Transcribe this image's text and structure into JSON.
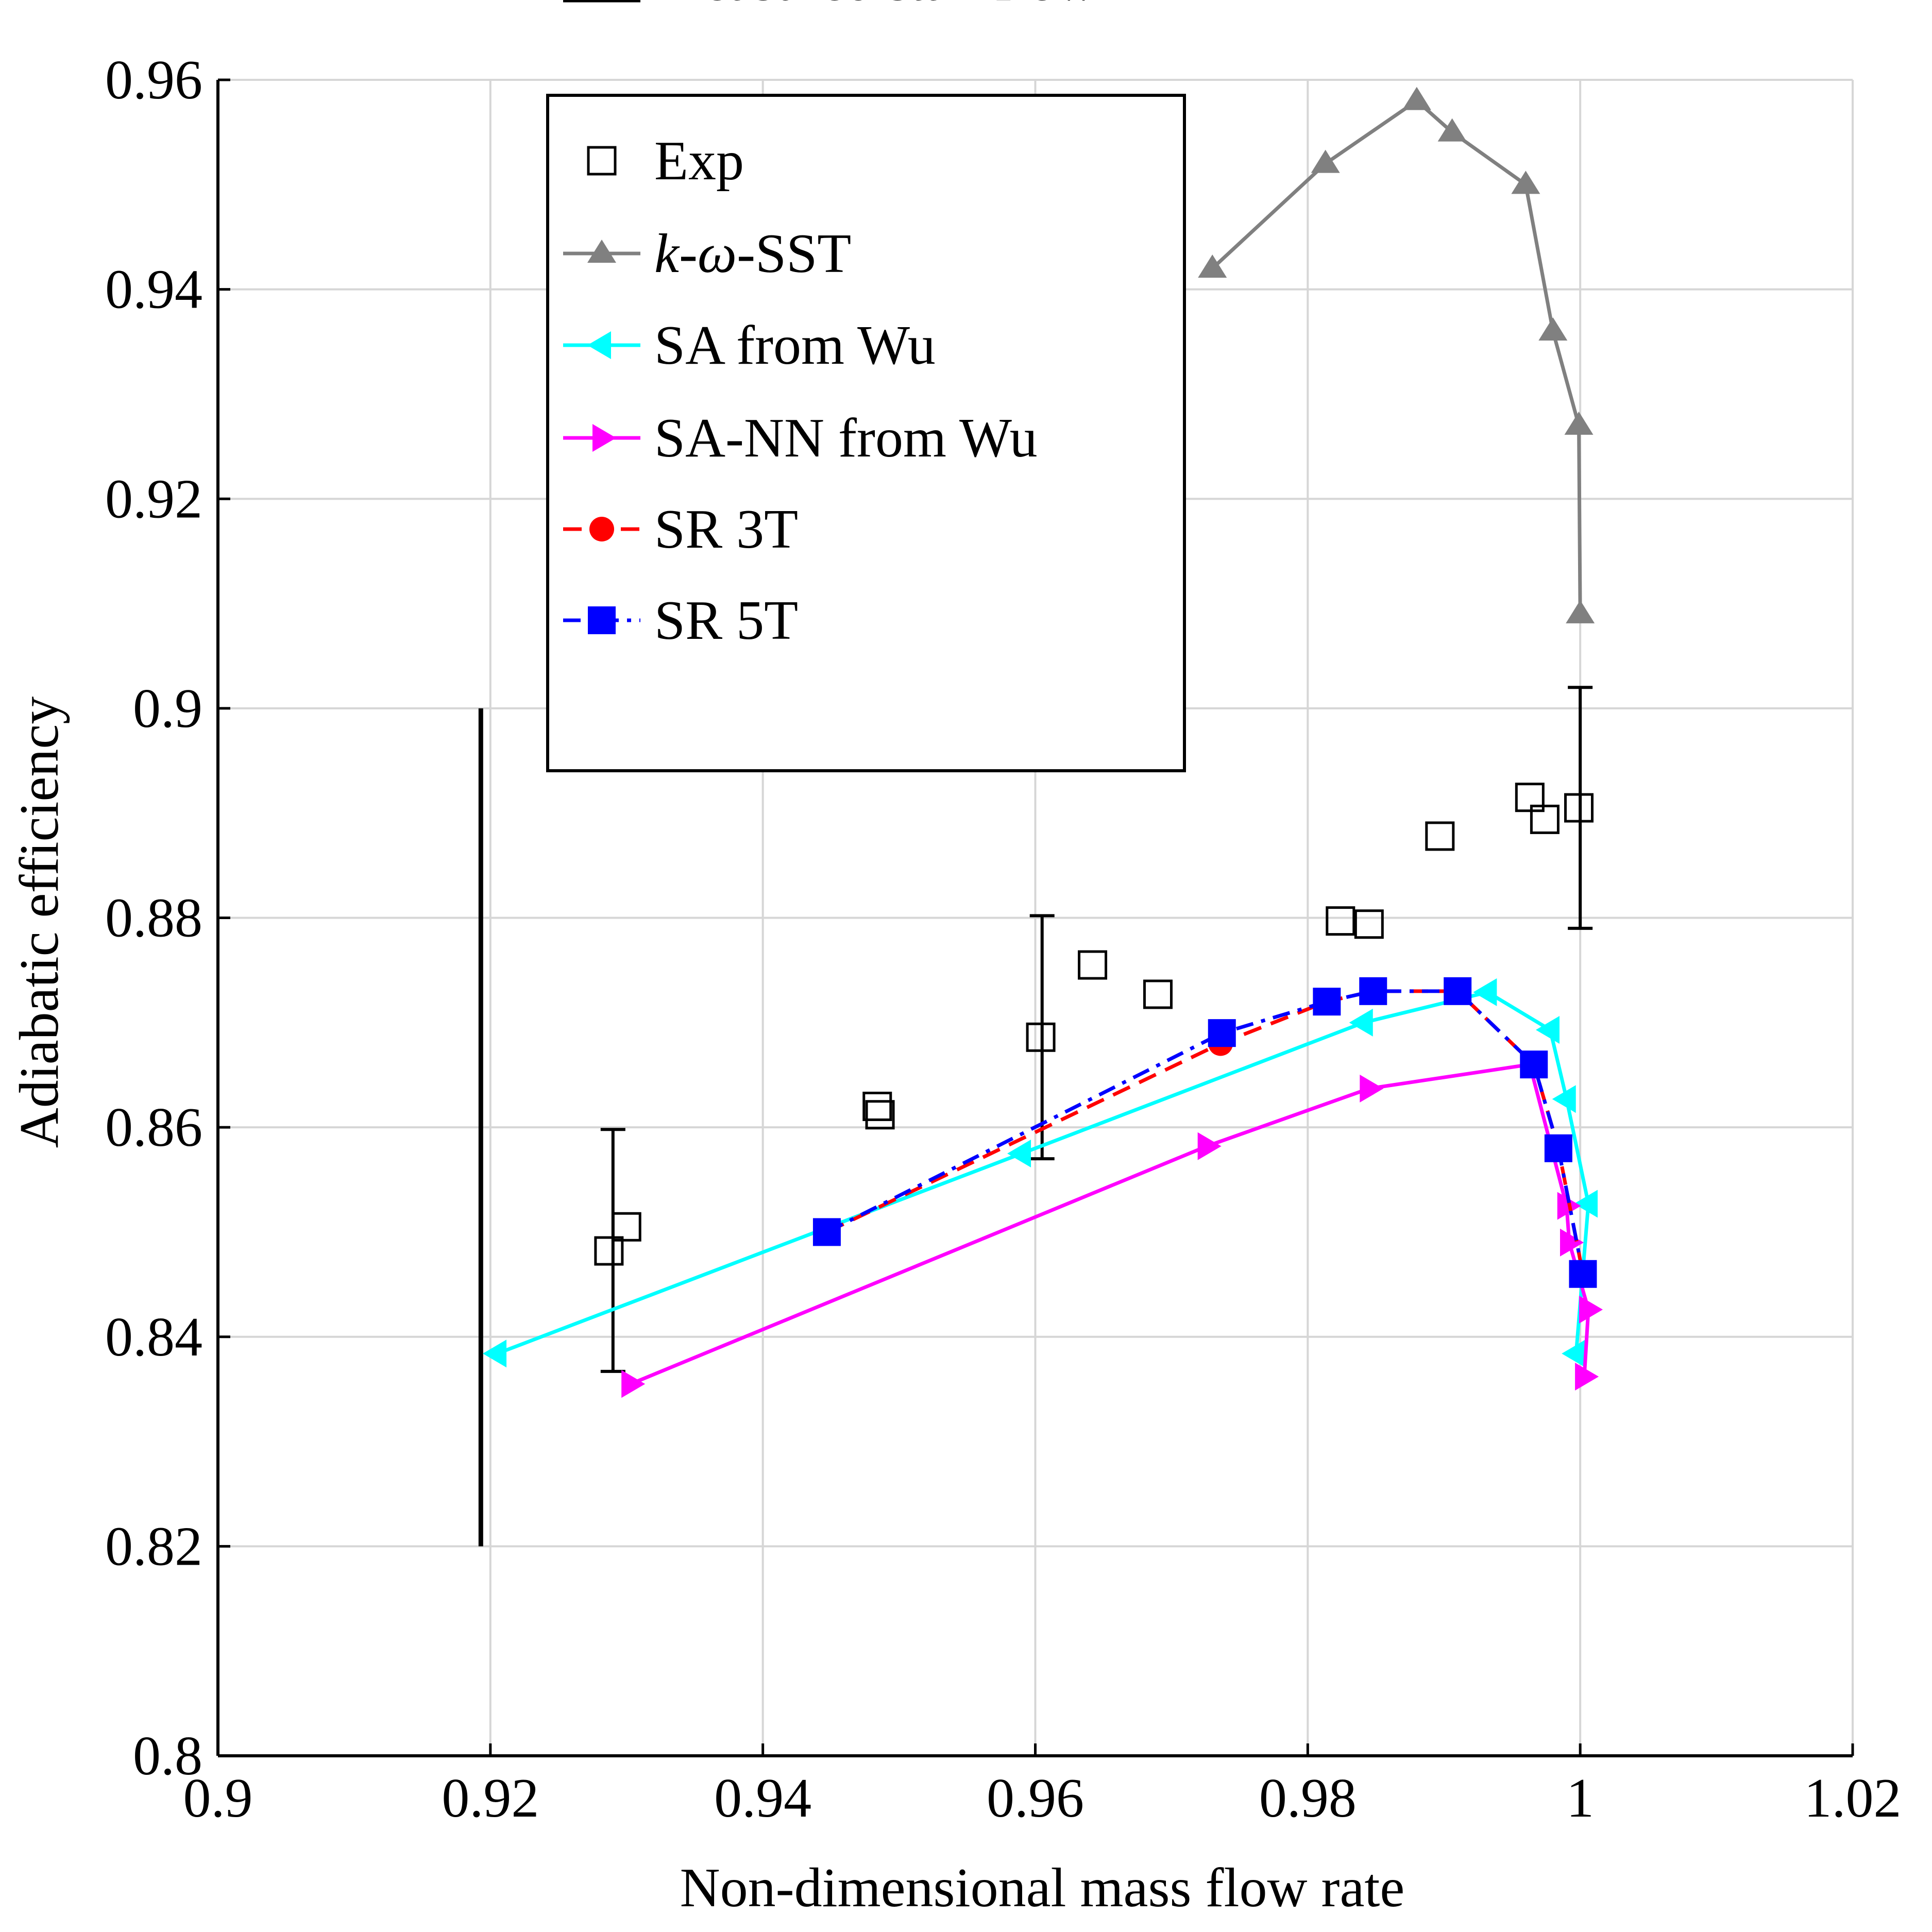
{
  "chart_data": {
    "type": "line",
    "xlabel": "Non-dimensional mass flow rate",
    "ylabel": "Adiabatic efficiency",
    "xlim": [
      0.9,
      1.02
    ],
    "ylim": [
      0.8,
      0.96
    ],
    "xticks": [
      0.9,
      0.92,
      0.94,
      0.96,
      0.98,
      1.0,
      1.02
    ],
    "xtick_labels": [
      "0.9",
      "0.92",
      "0.94",
      "0.96",
      "0.98",
      "1",
      "1.02"
    ],
    "yticks": [
      0.8,
      0.82,
      0.84,
      0.86,
      0.88,
      0.9,
      0.92,
      0.94,
      0.96
    ],
    "ytick_labels": [
      "0.8",
      "0.82",
      "0.84",
      "0.86",
      "0.88",
      "0.9",
      "0.92",
      "0.94",
      "0.96"
    ],
    "grid": true,
    "legend_position": "top-center",
    "series": [
      {
        "name": "Exp",
        "style": "markers",
        "marker": "open-square",
        "color": "#000000",
        "x": [
          0.9287,
          0.93,
          0.9484,
          0.9486,
          0.9604,
          0.9642,
          0.969,
          0.9824,
          0.9845,
          0.9897,
          0.9963,
          0.9974,
          0.9999
        ],
        "y": [
          0.8482,
          0.8505,
          0.862,
          0.8612,
          0.8686,
          0.8755,
          0.8727,
          0.8797,
          0.8794,
          0.8878,
          0.8915,
          0.8894,
          0.8905
        ]
      },
      {
        "name": "k-ω-SST",
        "legend_parts": [
          "k",
          "-",
          "ω",
          "-SST"
        ],
        "style": "line",
        "marker": "triangle-up",
        "color": "#808080",
        "x": [
          0.973,
          0.9813,
          0.988,
          0.9906,
          0.996,
          0.998,
          0.9999,
          1.0
        ],
        "y": [
          0.942,
          0.952,
          0.958,
          0.955,
          0.95,
          0.936,
          0.927,
          0.909
        ]
      },
      {
        "name": "SA from Wu",
        "style": "line",
        "marker": "triangle-left",
        "color": "#00ffff",
        "x": [
          0.9205,
          0.959,
          0.9841,
          0.9932,
          0.9978,
          0.999,
          1.0006,
          0.9997
        ],
        "y": [
          0.8384,
          0.8575,
          0.87,
          0.8729,
          0.8693,
          0.8627,
          0.8527,
          0.8384
        ]
      },
      {
        "name": "SA-NN from Wu",
        "style": "line",
        "marker": "triangle-right",
        "color": "#ff00ff",
        "x": [
          0.9303,
          0.9726,
          0.9845,
          0.9963,
          0.999,
          0.9992,
          1.0006,
          1.0003
        ],
        "y": [
          0.8355,
          0.8582,
          0.8637,
          0.866,
          0.8525,
          0.849,
          0.8426,
          0.8362
        ]
      },
      {
        "name": "SR 3T",
        "style": "dashed",
        "marker": "circle",
        "color": "#ff0000",
        "x": [
          0.9447,
          0.9736,
          0.9814,
          0.9848,
          0.991,
          0.9966,
          0.9984,
          1.0002
        ],
        "y": [
          0.85,
          0.868,
          0.872,
          0.873,
          0.873,
          0.866,
          0.858,
          0.846
        ]
      },
      {
        "name": "SR 5T",
        "style": "dash-dot",
        "marker": "filled-square",
        "color": "#0000ff",
        "x": [
          0.9447,
          0.9737,
          0.9814,
          0.9848,
          0.991,
          0.9966,
          0.9984,
          1.0002
        ],
        "y": [
          0.85,
          0.869,
          0.872,
          0.873,
          0.873,
          0.866,
          0.858,
          0.846
        ]
      }
    ],
    "error_bars": [
      {
        "x": 0.929,
        "y_low": 0.8367,
        "y_high": 0.8598
      },
      {
        "x": 0.9605,
        "y_low": 0.857,
        "y_high": 0.8802
      },
      {
        "x": 1.0,
        "y_low": 0.879,
        "y_high": 0.902
      }
    ],
    "stall_line": {
      "name": "Measured stall flow",
      "color": "#000000",
      "x": 0.9193,
      "y_low": 0.82,
      "y_high": 0.9
    }
  }
}
